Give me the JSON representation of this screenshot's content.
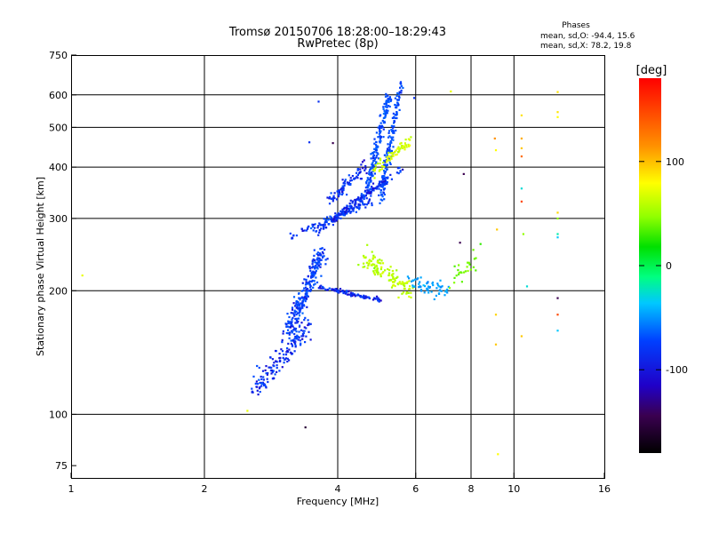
{
  "chart_data": {
    "type": "scatter",
    "title": "Tromsø 20150706 18:28:00–18:29:43",
    "subtitle": "RwPretec (8p)",
    "stats": {
      "heading": "Phases",
      "line_o": "mean, sd,O: -94.4, 15.6",
      "line_x": "mean, sd,X: 78.2, 19.8"
    },
    "xlabel": "Frequency [MHz]",
    "ylabel": "Stationary phase Virtual Height [km]",
    "xscale": "log",
    "yscale": "log",
    "xlim": [
      1,
      16
    ],
    "ylim": [
      70,
      750
    ],
    "xticks": [
      1,
      2,
      4,
      6,
      8,
      10,
      16
    ],
    "xtick_labels": [
      "1",
      "2",
      "4",
      "6",
      "8",
      "10",
      "16"
    ],
    "xgrid": [
      2,
      4,
      6,
      8,
      10
    ],
    "yticks": [
      75,
      100,
      200,
      300,
      400,
      500,
      600,
      750
    ],
    "ytick_labels": [
      "75",
      "100",
      "200",
      "300",
      "400",
      "500",
      "600",
      "750"
    ],
    "ygrid": [
      100,
      200,
      300,
      400,
      500,
      600
    ],
    "grid": true,
    "colorbar": {
      "label": "[deg]",
      "range": [
        -180,
        180
      ],
      "ticks": [
        100,
        0,
        -100
      ],
      "tick_labels": [
        "100",
        "0",
        "-100"
      ]
    },
    "clusters": [
      {
        "f0": 2.6,
        "f1": 3.4,
        "h0": 115,
        "h1": 165,
        "count": 160,
        "spread": 0.06,
        "phase": -110
      },
      {
        "f0": 3.1,
        "f1": 3.7,
        "h0": 160,
        "h1": 250,
        "count": 240,
        "spread": 0.05,
        "phase": -105
      },
      {
        "f0": 3.6,
        "f1": 5.0,
        "h0": 205,
        "h1": 190,
        "count": 90,
        "spread": 0.012,
        "phase": -110
      },
      {
        "f0": 3.1,
        "f1": 4.8,
        "h0": 270,
        "h1": 330,
        "count": 90,
        "spread": 0.02,
        "phase": -105
      },
      {
        "f0": 3.6,
        "f1": 5.3,
        "h0": 280,
        "h1": 380,
        "count": 110,
        "spread": 0.02,
        "phase": -108
      },
      {
        "f0": 3.9,
        "f1": 5.6,
        "h0": 300,
        "h1": 400,
        "count": 90,
        "spread": 0.02,
        "phase": -112
      },
      {
        "f0": 3.85,
        "f1": 4.6,
        "h0": 330,
        "h1": 400,
        "count": 80,
        "spread": 0.035,
        "phase": -110
      },
      {
        "f0": 4.7,
        "f1": 5.2,
        "h0": 360,
        "h1": 600,
        "count": 170,
        "spread": 0.03,
        "phase": -100
      },
      {
        "f0": 5.0,
        "f1": 5.55,
        "h0": 330,
        "h1": 640,
        "count": 150,
        "spread": 0.025,
        "phase": -100
      },
      {
        "f0": 4.8,
        "f1": 5.9,
        "h0": 390,
        "h1": 470,
        "count": 70,
        "spread": 0.03,
        "phase": 80
      },
      {
        "f0": 4.6,
        "f1": 5.8,
        "h0": 240,
        "h1": 200,
        "count": 120,
        "spread": 0.05,
        "phase": 75
      },
      {
        "f0": 5.8,
        "f1": 7.2,
        "h0": 210,
        "h1": 200,
        "count": 60,
        "spread": 0.04,
        "phase": -60
      },
      {
        "f0": 7.2,
        "f1": 8.2,
        "h0": 210,
        "h1": 240,
        "count": 25,
        "spread": 0.05,
        "phase": 50
      }
    ],
    "points": [
      {
        "f": 1.06,
        "h": 218,
        "phase": 90
      },
      {
        "f": 2.5,
        "h": 102,
        "phase": 90
      },
      {
        "f": 3.38,
        "h": 93,
        "phase": -160
      },
      {
        "f": 3.62,
        "h": 578,
        "phase": -110
      },
      {
        "f": 3.45,
        "h": 460,
        "phase": -110
      },
      {
        "f": 3.9,
        "h": 458,
        "phase": -150
      },
      {
        "f": 5.95,
        "h": 590,
        "phase": -110
      },
      {
        "f": 7.2,
        "h": 612,
        "phase": 90
      },
      {
        "f": 7.7,
        "h": 385,
        "phase": -150
      },
      {
        "f": 7.55,
        "h": 262,
        "phase": -150
      },
      {
        "f": 8.4,
        "h": 260,
        "phase": 30
      },
      {
        "f": 9.05,
        "h": 470,
        "phase": 140
      },
      {
        "f": 9.1,
        "h": 440,
        "phase": 100
      },
      {
        "f": 9.15,
        "h": 282,
        "phase": 120
      },
      {
        "f": 9.2,
        "h": 80,
        "phase": 100
      },
      {
        "f": 9.1,
        "h": 175,
        "phase": 115
      },
      {
        "f": 9.1,
        "h": 148,
        "phase": 120
      },
      {
        "f": 10.4,
        "h": 535,
        "phase": 110
      },
      {
        "f": 10.4,
        "h": 470,
        "phase": 130
      },
      {
        "f": 10.4,
        "h": 445,
        "phase": 120
      },
      {
        "f": 10.4,
        "h": 425,
        "phase": 150
      },
      {
        "f": 10.4,
        "h": 355,
        "phase": -30
      },
      {
        "f": 10.4,
        "h": 330,
        "phase": 160
      },
      {
        "f": 10.5,
        "h": 275,
        "phase": 60
      },
      {
        "f": 10.7,
        "h": 205,
        "phase": -30
      },
      {
        "f": 10.4,
        "h": 155,
        "phase": 120
      },
      {
        "f": 12.55,
        "h": 610,
        "phase": 110
      },
      {
        "f": 12.55,
        "h": 545,
        "phase": 110
      },
      {
        "f": 12.55,
        "h": 530,
        "phase": 100
      },
      {
        "f": 12.55,
        "h": 310,
        "phase": 115
      },
      {
        "f": 12.55,
        "h": 300,
        "phase": 60
      },
      {
        "f": 12.55,
        "h": 275,
        "phase": -20
      },
      {
        "f": 12.55,
        "h": 270,
        "phase": -40
      },
      {
        "f": 12.55,
        "h": 192,
        "phase": -150
      },
      {
        "f": 12.55,
        "h": 175,
        "phase": 160
      },
      {
        "f": 12.55,
        "h": 160,
        "phase": -40
      }
    ]
  }
}
